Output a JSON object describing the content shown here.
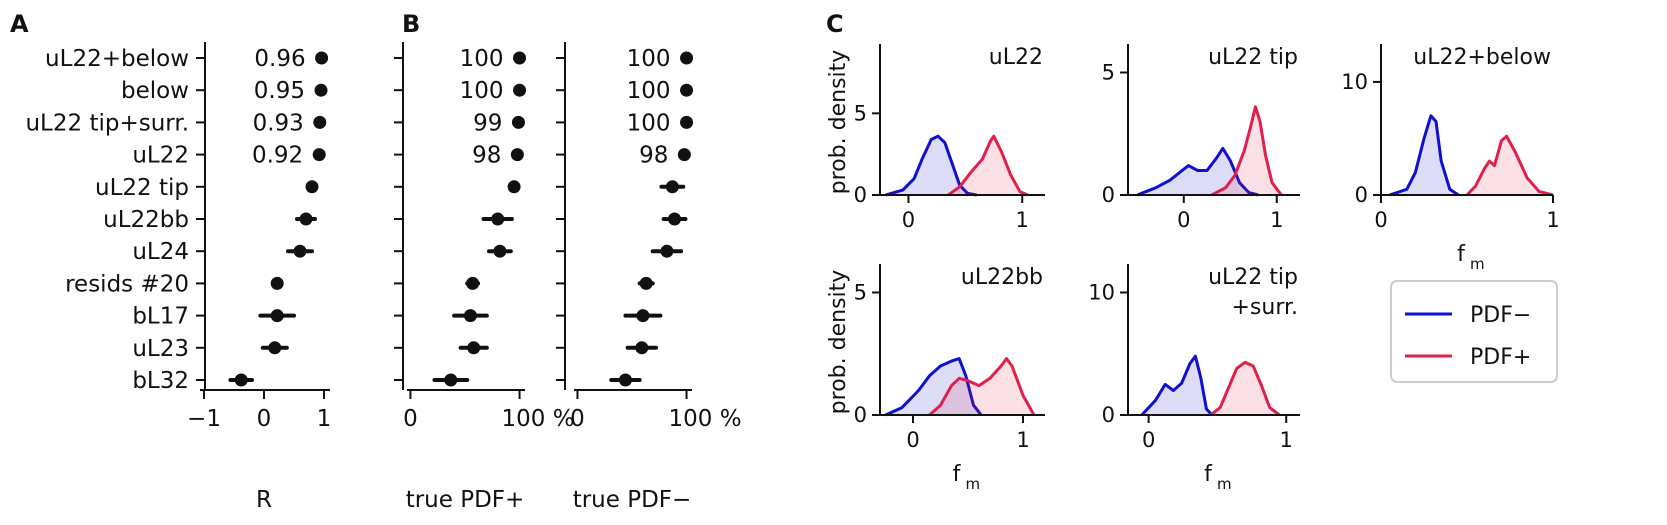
{
  "panel_letters": {
    "a": "A",
    "b": "B",
    "c": "C"
  },
  "colors": {
    "pdf_minus": "#1010d0",
    "pdf_plus": "#e0204a",
    "marker": "#111111"
  },
  "chart_data": [
    {
      "id": "A",
      "type": "scatter",
      "xlabel": "R",
      "xlim": [
        -1.1,
        1.1
      ],
      "xticks": [
        "−1",
        "0",
        "1"
      ],
      "xtick_values": [
        -1,
        0,
        1
      ],
      "categories": [
        "uL22+below",
        "below",
        "uL22 tip+surr.",
        "uL22",
        "uL22 tip",
        "uL22bb",
        "uL24",
        "resids #20",
        "bL17",
        "uL23",
        "bL32"
      ],
      "values": [
        0.96,
        0.95,
        0.93,
        0.92,
        0.8,
        0.7,
        0.6,
        0.22,
        0.22,
        0.18,
        -0.38
      ],
      "error": [
        0,
        0,
        0,
        0,
        0.05,
        0.15,
        0.2,
        0.05,
        0.28,
        0.2,
        0.18
      ],
      "value_labels": [
        "0.96",
        "0.95",
        "0.93",
        "0.92",
        "",
        "",
        "",
        "",
        "",
        "",
        ""
      ]
    },
    {
      "id": "B1",
      "type": "scatter",
      "xlabel": "true PDF+",
      "xlim": [
        -5,
        105
      ],
      "xticks": [
        "0",
        "100 %"
      ],
      "xtick_values": [
        0,
        100
      ],
      "values": [
        100,
        100,
        99,
        98,
        95,
        80,
        82,
        57,
        55,
        58,
        37
      ],
      "error": [
        0,
        0,
        0,
        0,
        4,
        13,
        10,
        5,
        15,
        12,
        15
      ],
      "value_labels": [
        "100",
        "100",
        "99",
        "98",
        "",
        "",
        "",
        "",
        "",
        "",
        ""
      ]
    },
    {
      "id": "B2",
      "type": "scatter",
      "xlabel": "true PDF−",
      "xlim": [
        -5,
        105
      ],
      "xticks": [
        "0",
        "100 %"
      ],
      "xtick_values": [
        0,
        100
      ],
      "values": [
        100,
        100,
        100,
        98,
        87,
        89,
        82,
        63,
        60,
        59,
        44
      ],
      "error": [
        0,
        0,
        0,
        0,
        10,
        10,
        13,
        6,
        16,
        13,
        13
      ],
      "value_labels": [
        "100",
        "100",
        "100",
        "98",
        "",
        "",
        "",
        "",
        "",
        "",
        ""
      ]
    },
    {
      "id": "C",
      "type": "area",
      "ylabel": "prob. density",
      "xlabel": "f",
      "xlabel_sub": "m",
      "legend": {
        "position": "right",
        "entries": [
          "PDF−",
          "PDF+"
        ]
      },
      "panels": [
        {
          "title": "uL22",
          "xlim": [
            -0.25,
            1.2
          ],
          "ylim": [
            0,
            9
          ],
          "xticks": [
            "0",
            "1"
          ],
          "yticks": [
            "0",
            "5"
          ],
          "blue": [
            [
              -0.2,
              0
            ],
            [
              -0.05,
              0.3
            ],
            [
              0.05,
              1
            ],
            [
              0.12,
              2.2
            ],
            [
              0.2,
              3.4
            ],
            [
              0.26,
              3.6
            ],
            [
              0.32,
              3.2
            ],
            [
              0.38,
              2
            ],
            [
              0.45,
              0.6
            ],
            [
              0.52,
              0.1
            ],
            [
              0.6,
              0
            ]
          ],
          "red": [
            [
              0.35,
              0
            ],
            [
              0.45,
              0.5
            ],
            [
              0.55,
              1.4
            ],
            [
              0.65,
              2.2
            ],
            [
              0.72,
              3.3
            ],
            [
              0.75,
              3.6
            ],
            [
              0.82,
              2.6
            ],
            [
              0.9,
              1.2
            ],
            [
              0.98,
              0.2
            ],
            [
              1.05,
              0
            ]
          ],
          "xlabel_visible": false
        },
        {
          "title": "uL22 tip",
          "xlim": [
            -0.6,
            1.25
          ],
          "ylim": [
            0,
            6
          ],
          "xticks": [
            "0",
            "1"
          ],
          "yticks": [
            "0",
            "5"
          ],
          "blue": [
            [
              -0.5,
              0
            ],
            [
              -0.3,
              0.3
            ],
            [
              -0.15,
              0.6
            ],
            [
              -0.05,
              0.9
            ],
            [
              0.05,
              1.2
            ],
            [
              0.15,
              1.0
            ],
            [
              0.25,
              1.0
            ],
            [
              0.35,
              1.5
            ],
            [
              0.42,
              1.9
            ],
            [
              0.5,
              1.4
            ],
            [
              0.6,
              0.5
            ],
            [
              0.7,
              0.1
            ],
            [
              0.8,
              0
            ]
          ],
          "red": [
            [
              0.3,
              0
            ],
            [
              0.45,
              0.3
            ],
            [
              0.55,
              0.8
            ],
            [
              0.65,
              1.8
            ],
            [
              0.72,
              2.8
            ],
            [
              0.77,
              3.6
            ],
            [
              0.82,
              3.0
            ],
            [
              0.88,
              1.6
            ],
            [
              0.95,
              0.5
            ],
            [
              1.05,
              0
            ]
          ],
          "xlabel_visible": false
        },
        {
          "title": "uL22+below",
          "xlim": [
            0,
            1
          ],
          "ylim": [
            0,
            13
          ],
          "xticks": [
            "0",
            "1"
          ],
          "yticks": [
            "0",
            "10"
          ],
          "blue": [
            [
              0.05,
              0
            ],
            [
              0.15,
              0.5
            ],
            [
              0.2,
              2
            ],
            [
              0.25,
              5
            ],
            [
              0.29,
              7
            ],
            [
              0.32,
              6.5
            ],
            [
              0.35,
              3
            ],
            [
              0.4,
              0.5
            ],
            [
              0.45,
              0
            ]
          ],
          "red": [
            [
              0.5,
              0
            ],
            [
              0.55,
              0.8
            ],
            [
              0.6,
              2.3
            ],
            [
              0.63,
              3
            ],
            [
              0.66,
              2.6
            ],
            [
              0.7,
              4.8
            ],
            [
              0.73,
              5.2
            ],
            [
              0.78,
              3.8
            ],
            [
              0.85,
              1.5
            ],
            [
              0.92,
              0.3
            ],
            [
              1.0,
              0
            ]
          ],
          "xlabel_visible": true
        },
        {
          "title": "uL22bb",
          "xlim": [
            -0.3,
            1.2
          ],
          "ylim": [
            0,
            6
          ],
          "xticks": [
            "0",
            "1"
          ],
          "yticks": [
            "0",
            "5"
          ],
          "blue": [
            [
              -0.25,
              0
            ],
            [
              -0.1,
              0.3
            ],
            [
              0.05,
              1
            ],
            [
              0.15,
              1.6
            ],
            [
              0.25,
              2
            ],
            [
              0.35,
              2.2
            ],
            [
              0.42,
              2.3
            ],
            [
              0.48,
              1.6
            ],
            [
              0.55,
              0.4
            ],
            [
              0.62,
              0
            ]
          ],
          "red": [
            [
              0.15,
              0
            ],
            [
              0.25,
              0.4
            ],
            [
              0.35,
              1.2
            ],
            [
              0.42,
              1.5
            ],
            [
              0.5,
              1.4
            ],
            [
              0.6,
              1.2
            ],
            [
              0.7,
              1.5
            ],
            [
              0.8,
              2.0
            ],
            [
              0.85,
              2.3
            ],
            [
              0.9,
              2.0
            ],
            [
              1.0,
              0.8
            ],
            [
              1.1,
              0
            ]
          ],
          "xlabel_visible": true
        },
        {
          "title": "uL22 tip",
          "title2": "+surr.",
          "xlim": [
            -0.15,
            1.1
          ],
          "ylim": [
            0,
            12
          ],
          "xticks": [
            "0",
            "1"
          ],
          "yticks": [
            "0",
            "10"
          ],
          "blue": [
            [
              -0.05,
              0
            ],
            [
              0.05,
              1.2
            ],
            [
              0.12,
              2.5
            ],
            [
              0.18,
              2.0
            ],
            [
              0.24,
              2.6
            ],
            [
              0.3,
              4.2
            ],
            [
              0.34,
              4.8
            ],
            [
              0.38,
              3.0
            ],
            [
              0.42,
              0.5
            ],
            [
              0.46,
              0
            ]
          ],
          "red": [
            [
              0.45,
              0
            ],
            [
              0.52,
              0.6
            ],
            [
              0.58,
              2.2
            ],
            [
              0.64,
              3.8
            ],
            [
              0.7,
              4.3
            ],
            [
              0.76,
              4.0
            ],
            [
              0.82,
              2.4
            ],
            [
              0.88,
              0.6
            ],
            [
              0.95,
              0
            ]
          ],
          "xlabel_visible": true
        }
      ]
    }
  ]
}
